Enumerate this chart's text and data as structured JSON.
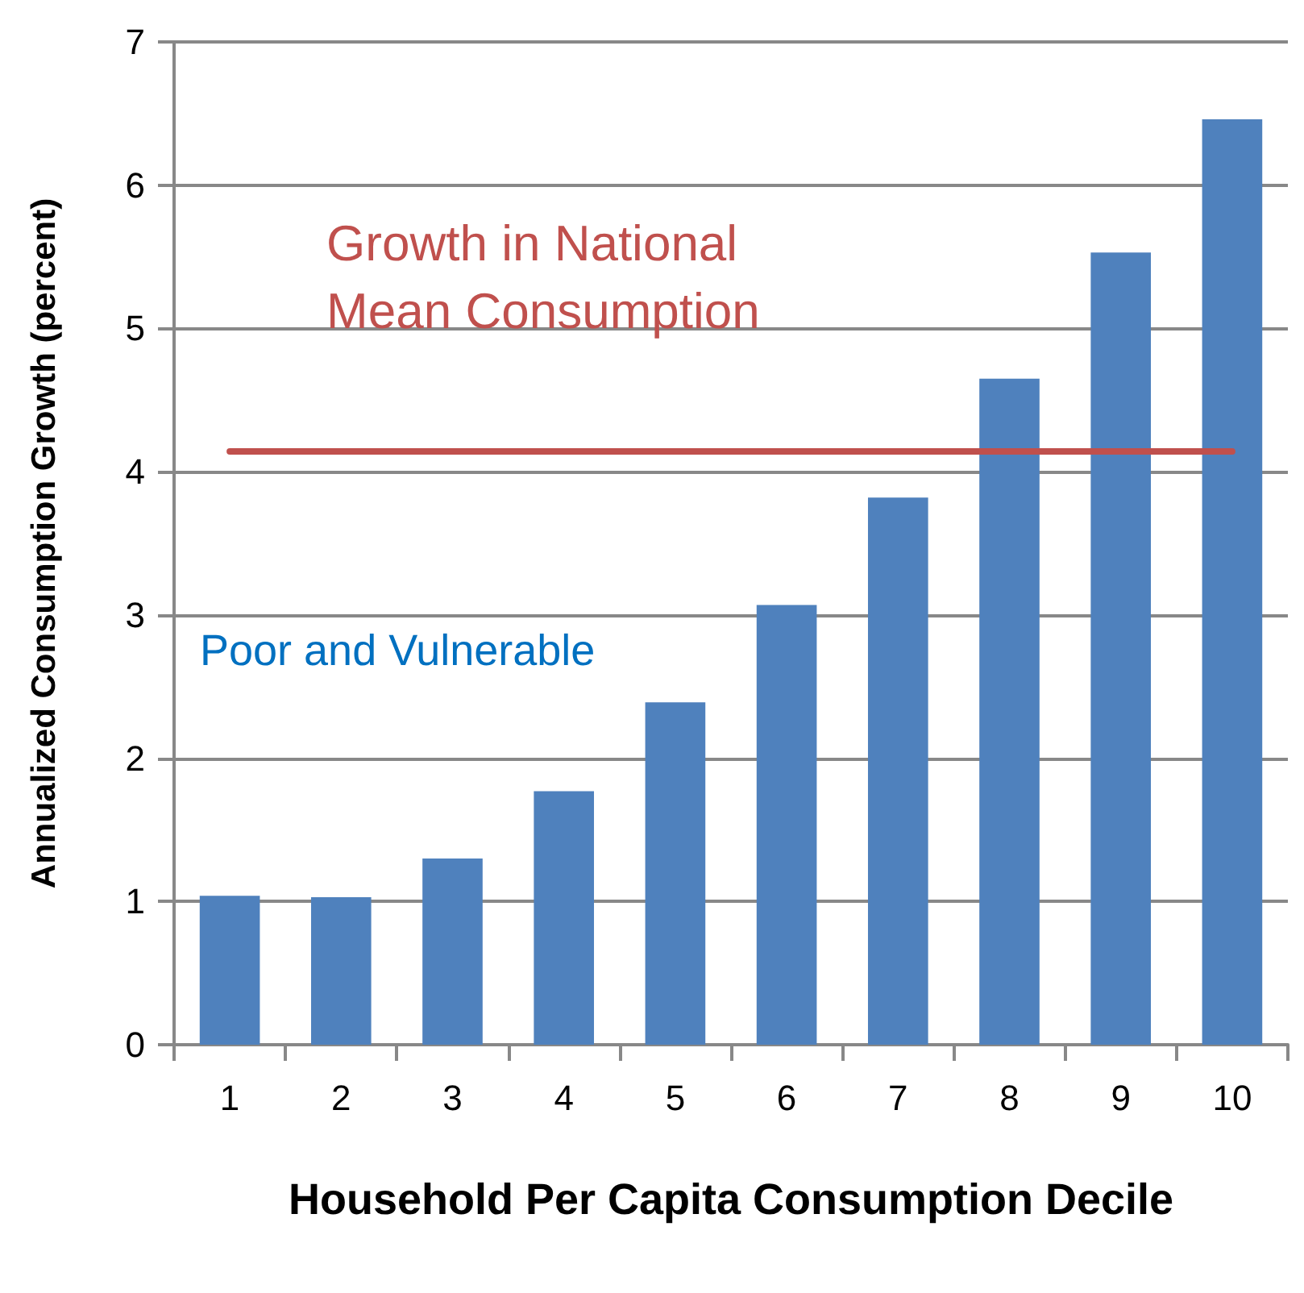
{
  "chart_data": {
    "type": "bar",
    "xlabel": "Household Per Capita Consumption Decile",
    "ylabel": "Annualized Consumption Growth (percent)",
    "categories": [
      "1",
      "2",
      "3",
      "4",
      "5",
      "6",
      "7",
      "8",
      "9",
      "10"
    ],
    "values": [
      1.04,
      1.03,
      1.3,
      1.77,
      2.39,
      3.07,
      3.82,
      4.65,
      5.53,
      6.46
    ],
    "color": "#4f81bd",
    "ylim": [
      0,
      7
    ],
    "yticks": [
      0,
      1,
      2,
      3,
      4,
      5,
      6,
      7
    ],
    "grid": "y",
    "ref_lines": [
      {
        "axis": "y",
        "value": 4.14,
        "label": "Growth in National Mean Consumption",
        "color": "#c0504d",
        "line_style": "solid"
      }
    ],
    "annotations": [
      "Poor and Vulnerable"
    ]
  }
}
